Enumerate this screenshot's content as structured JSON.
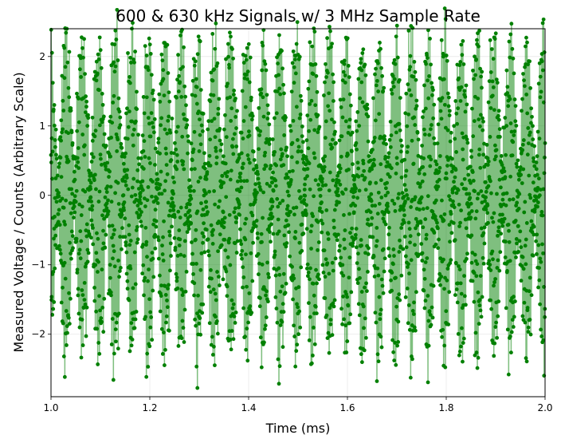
{
  "chart_data": {
    "type": "line",
    "title": "600 & 630 kHz Signals w/ 3 MHz Sample Rate",
    "xlabel": "Time (ms)",
    "ylabel": "Measured Voltage / Counts (Arbitrary Scale)",
    "xlim": [
      1.0,
      2.0
    ],
    "ylim": [
      -2.9,
      2.4
    ],
    "xticks": [
      1.0,
      1.2,
      1.4,
      1.6,
      1.8,
      2.0
    ],
    "xtick_labels": [
      "1.0",
      "1.2",
      "1.4",
      "1.6",
      "1.8",
      "2.0"
    ],
    "yticks": [
      -2,
      -1,
      0,
      1,
      2
    ],
    "ytick_labels": [
      "−2",
      "−1",
      "0",
      "1",
      "2"
    ],
    "grid": true,
    "series": [
      {
        "color": "#008000",
        "line_alpha": 0.5,
        "marker": "circle",
        "signal": {
          "components": [
            {
              "frequency_khz": 600,
              "amplitude": 1.15
            },
            {
              "frequency_khz": 630,
              "amplitude": 1.15
            }
          ],
          "sample_rate_mhz": 3,
          "t_start_ms": 1.0,
          "t_end_ms": 2.0
        }
      }
    ]
  }
}
